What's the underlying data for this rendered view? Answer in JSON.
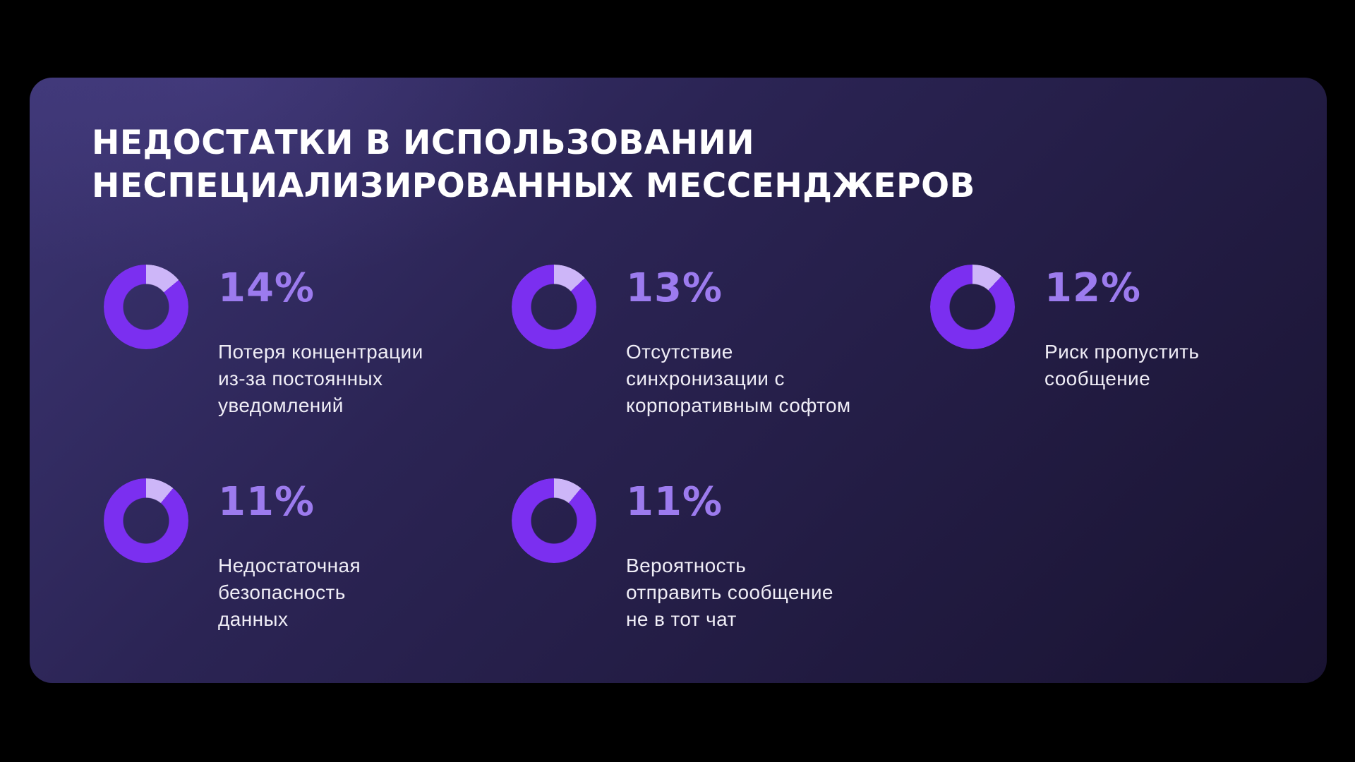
{
  "slide": {
    "title_line1": "НЕДОСТАТКИ В ИСПОЛЬЗОВАНИИ",
    "title_line2": "НЕСПЕЦИАЛИЗИРОВАННЫХ МЕССЕНДЖЕРОВ"
  },
  "stats": [
    {
      "value": "14%",
      "pct": 14,
      "label": "Потеря концентрации\nиз-за постоянных\nуведомлений"
    },
    {
      "value": "13%",
      "pct": 13,
      "label": "Отсутствие\nсинхронизации с\nкорпоративным софтом"
    },
    {
      "value": "12%",
      "pct": 12,
      "label": "Риск пропустить\nсообщение"
    },
    {
      "value": "11%",
      "pct": 11,
      "label": "Недостаточная\nбезопасность\nданных"
    },
    {
      "value": "11%",
      "pct": 11,
      "label": "Вероятность\nотправить сообщение\nне в тот чат"
    }
  ],
  "colors": {
    "background": "#000000",
    "card_gradient_start": "#3C3573",
    "card_gradient_end": "#191331",
    "title_text": "#FFFFFF",
    "label_text": "#EFEDF6",
    "percent_text": "#9C7BEE",
    "ring": "#7B2FF0",
    "ring_segment": "#CDB6F8"
  },
  "chart_data": {
    "type": "pie",
    "variant": "donut-gauges",
    "title": "НЕДОСТАТКИ В ИСПОЛЬЗОВАНИИ НЕСПЕЦИАЛИЗИРОВАННЫХ МЕССЕНДЖЕРОВ",
    "unit": "%",
    "categories": [
      "Потеря концентрации из-за постоянных уведомлений",
      "Отсутствие синхронизации с корпоративным софтом",
      "Риск пропустить сообщение",
      "Недостаточная безопасность данных",
      "Вероятность отправить сообщение не в тот чат"
    ],
    "values": [
      14,
      13,
      12,
      11,
      11
    ],
    "legend": "none",
    "notes": "Five separate donut gauges in a 3+2 grid; light arc starts at 12 o'clock and runs clockwise proportionally to each value; percentage label to the right of each donut."
  }
}
